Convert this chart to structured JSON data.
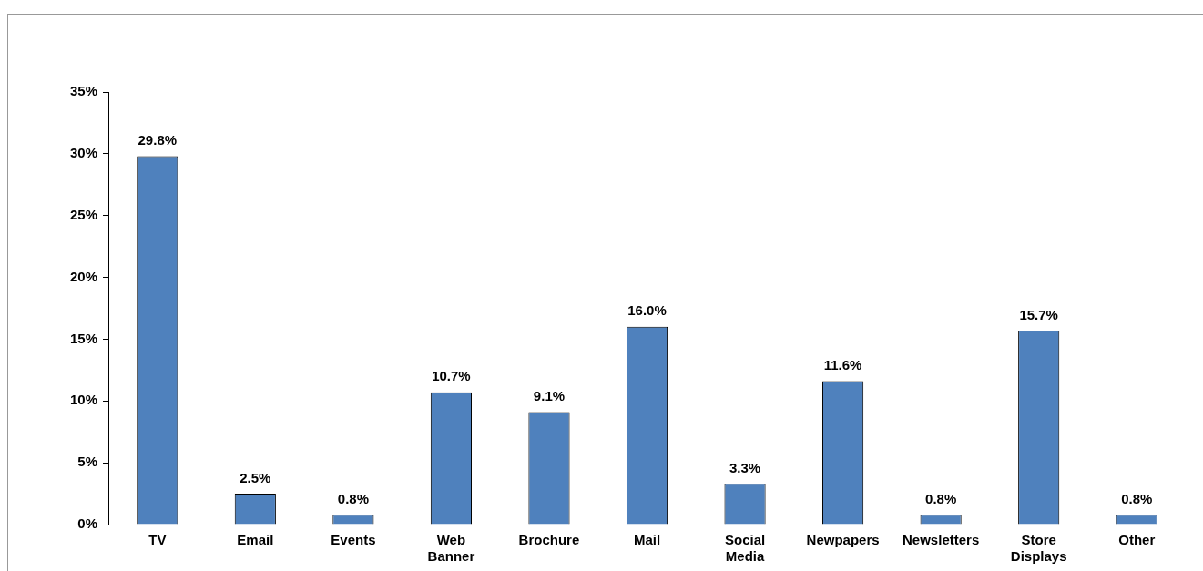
{
  "chart_data": {
    "type": "bar",
    "categories": [
      "TV",
      "Email",
      "Events",
      "Web Banner",
      "Brochure",
      "Mail",
      "Social Media",
      "Newpapers",
      "Newsletters",
      "Store Displays",
      "Other"
    ],
    "values": [
      29.8,
      2.5,
      0.8,
      10.7,
      9.1,
      16.0,
      3.3,
      11.6,
      0.8,
      15.7,
      0.8
    ],
    "value_labels": [
      "29.8%",
      "2.5%",
      "0.8%",
      "10.7%",
      "9.1%",
      "16.0%",
      "3.3%",
      "11.6%",
      "0.8%",
      "15.7%",
      "0.8%"
    ],
    "color": "#4f81bd",
    "ylim": [
      0,
      35
    ],
    "yticks": [
      {
        "value": 0,
        "label": "0%"
      },
      {
        "value": 5,
        "label": "5%"
      },
      {
        "value": 10,
        "label": "10%"
      },
      {
        "value": 15,
        "label": "15%"
      },
      {
        "value": 20,
        "label": "20%"
      },
      {
        "value": 25,
        "label": "25%"
      },
      {
        "value": 30,
        "label": "30%"
      },
      {
        "value": 35,
        "label": "35%"
      }
    ],
    "grid": false,
    "legend": false
  }
}
